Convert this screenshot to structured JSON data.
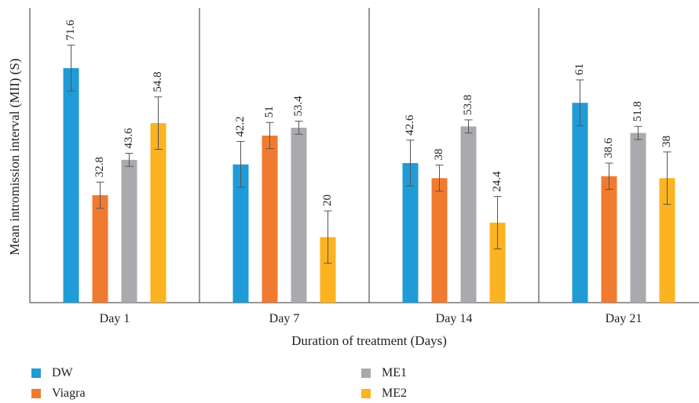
{
  "chart_data": {
    "type": "bar",
    "xlabel": "Duration of treatment (Days)",
    "ylabel": "Mean intromission interval (MII) (S)",
    "ylim": [
      0,
      90
    ],
    "grid": false,
    "legend_position": "bottom",
    "categories": [
      "Day 1",
      "Day 7",
      "Day 14",
      "Day 21"
    ],
    "series": [
      {
        "name": "DW",
        "color": "#1f9bd7",
        "values": [
          71.6,
          42.2,
          42.6,
          61
        ],
        "errors": [
          7,
          7,
          7,
          7
        ]
      },
      {
        "name": "Viagra",
        "color": "#f07a2f",
        "values": [
          32.8,
          51,
          38,
          38.6
        ],
        "errors": [
          4,
          4,
          4,
          4
        ]
      },
      {
        "name": "ME1",
        "color": "#a9aaad",
        "values": [
          43.6,
          53.4,
          53.8,
          51.8
        ],
        "errors": [
          2,
          2,
          2,
          2
        ]
      },
      {
        "name": "ME2",
        "color": "#fbb321",
        "values": [
          54.8,
          20,
          24.4,
          38
        ],
        "errors": [
          8,
          8,
          8,
          8
        ]
      }
    ]
  }
}
